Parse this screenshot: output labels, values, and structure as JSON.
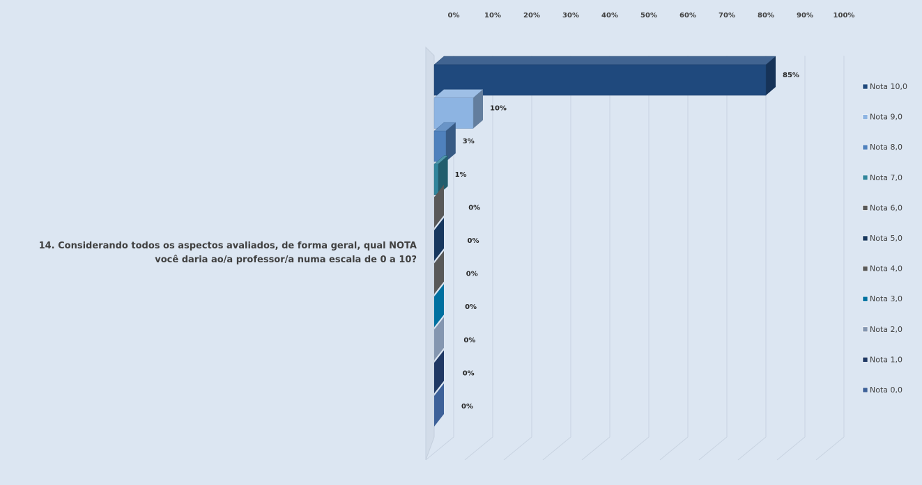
{
  "question": "14. Considerando todos os aspectos avaliados, de forma geral, qual NOTA você daria ao/a professor/a numa escala de 0 a 10?",
  "chart_data": {
    "type": "bar",
    "orientation": "horizontal",
    "style": "3d",
    "xlim": [
      0,
      100
    ],
    "x_ticks": [
      "0%",
      "10%",
      "20%",
      "30%",
      "40%",
      "50%",
      "60%",
      "70%",
      "80%",
      "90%",
      "100%"
    ],
    "grid": true,
    "legend_position": "right",
    "category": "14. Considerando todos os aspectos avaliados, de forma geral, qual NOTA você daria ao/a professor/a numa escala de 0 a 10?",
    "series": [
      {
        "name": "Nota 10,0",
        "value": 85,
        "label": "85%",
        "color": "#1f497d"
      },
      {
        "name": "Nota 9,0",
        "value": 10,
        "label": "10%",
        "color": "#8db4e2"
      },
      {
        "name": "Nota 8,0",
        "value": 3,
        "label": "3%",
        "color": "#4f81bd"
      },
      {
        "name": "Nota 7,0",
        "value": 1,
        "label": "1%",
        "color": "#31859c"
      },
      {
        "name": "Nota 6,0",
        "value": 0,
        "label": "0%",
        "color": "#595959"
      },
      {
        "name": "Nota 5,0",
        "value": 0,
        "label": "0%",
        "color": "#17375e"
      },
      {
        "name": "Nota 4,0",
        "value": 0,
        "label": "0%",
        "color": "#595959"
      },
      {
        "name": "Nota 3,0",
        "value": 0,
        "label": "0%",
        "color": "#0070a0"
      },
      {
        "name": "Nota 2,0",
        "value": 0,
        "label": "0%",
        "color": "#8496b0"
      },
      {
        "name": "Nota 1,0",
        "value": 0,
        "label": "0%",
        "color": "#1f3864"
      },
      {
        "name": "Nota 0,0",
        "value": 0,
        "label": "0%",
        "color": "#3d6199"
      }
    ]
  }
}
